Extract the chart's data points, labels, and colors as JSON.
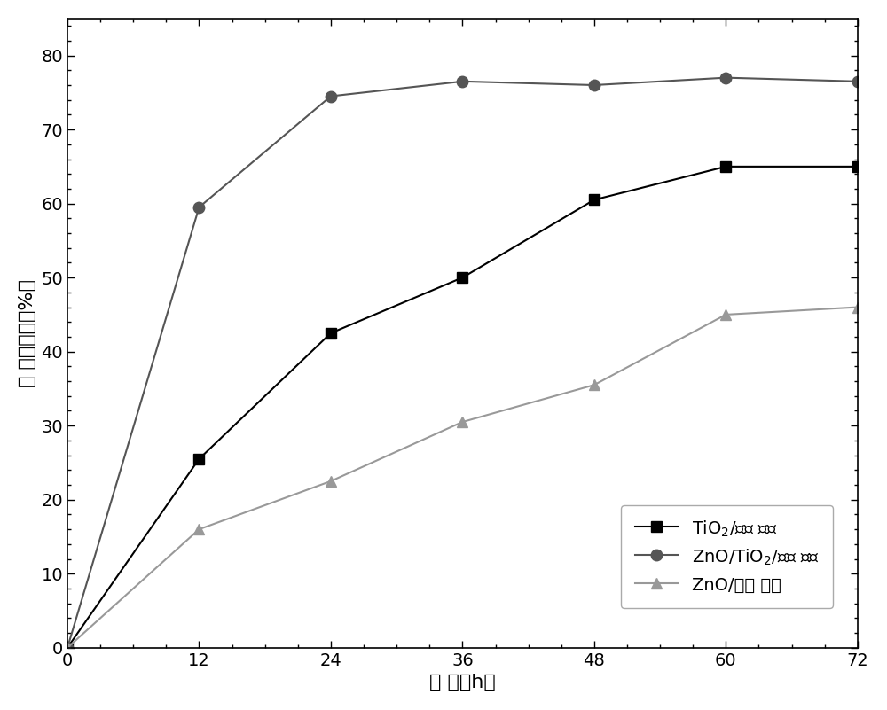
{
  "x": [
    0,
    12,
    24,
    36,
    48,
    60,
    72
  ],
  "tio2": [
    0,
    25.5,
    42.5,
    50,
    60.5,
    65,
    65
  ],
  "zno_tio2": [
    0,
    59.5,
    74.5,
    76.5,
    76,
    77,
    76.5
  ],
  "zno": [
    0,
    16,
    22.5,
    30.5,
    35.5,
    45,
    46
  ],
  "line_color_tio2": "#000000",
  "line_color_zno_tio2": "#555555",
  "line_color_zno": "#999999",
  "marker_color_tio2": "#000000",
  "marker_color_zno_tio2": "#555555",
  "marker_color_zno": "#999999",
  "marker_tio2": "s",
  "marker_zno_tio2": "o",
  "marker_zno": "^",
  "label_tio2": "TiO$_2$/玻璃 纤维",
  "label_zno_tio2": "ZnO/TiO$_2$/玻璃 纤维",
  "label_zno": "ZnO/玻璃 纤维",
  "xlabel": "时 间（h）",
  "ylabel": "苯 的降解率（%）",
  "xlim": [
    0,
    72
  ],
  "ylim": [
    0,
    85
  ],
  "xticks": [
    0,
    12,
    24,
    36,
    48,
    60,
    72
  ],
  "yticks": [
    0,
    10,
    20,
    30,
    40,
    50,
    60,
    70,
    80
  ],
  "background_color": "#ffffff",
  "marker_size": 9,
  "line_width": 1.5,
  "label_fontsize": 16,
  "tick_fontsize": 14,
  "legend_fontsize": 14
}
